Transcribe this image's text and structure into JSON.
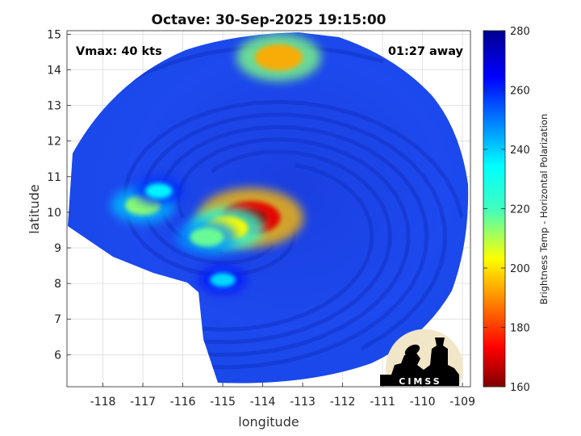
{
  "chart_data": {
    "type": "heatmap",
    "title": "Octave: 30-Sep-2025 19:15:00",
    "xlabel": "longitude",
    "ylabel": "latitude",
    "xlim": [
      -118.9,
      -108.8
    ],
    "ylim": [
      5.1,
      15.1
    ],
    "xticks": [
      -118,
      -117,
      -116,
      -115,
      -114,
      -113,
      -112,
      -111,
      -110,
      -109
    ],
    "yticks": [
      6,
      7,
      8,
      9,
      10,
      11,
      12,
      13,
      14,
      15
    ],
    "grid": true,
    "colorbar": {
      "label": "Brightness Temp - Horizontal Polarization",
      "range": [
        160,
        280
      ],
      "ticks": [
        160,
        180,
        200,
        220,
        240,
        260,
        280
      ],
      "colormap": "jet"
    },
    "annotations": {
      "vmax": "Vmax: 40 kts",
      "time_offset": "01:27 away"
    },
    "logo_text": "CIMSS",
    "features": [
      {
        "lon": -114.3,
        "lat": 9.85,
        "value": 172
      },
      {
        "lon": -114.9,
        "lat": 9.55,
        "value": 205
      },
      {
        "lon": -115.4,
        "lat": 9.3,
        "value": 222
      },
      {
        "lon": -117.0,
        "lat": 10.2,
        "value": 218
      },
      {
        "lon": -116.6,
        "lat": 10.6,
        "value": 235
      },
      {
        "lon": -113.6,
        "lat": 14.35,
        "value": 195
      },
      {
        "lon": -115.0,
        "lat": 8.1,
        "value": 238
      }
    ]
  }
}
